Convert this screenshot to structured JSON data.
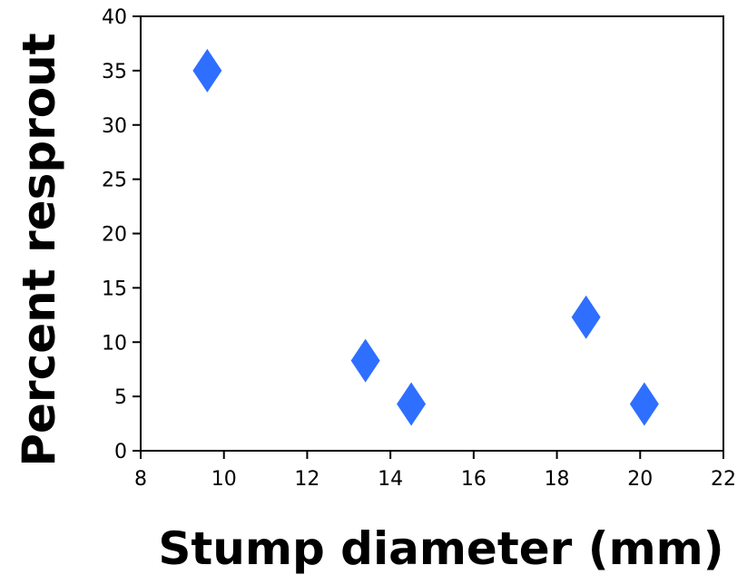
{
  "chart_data": {
    "type": "scatter",
    "xlabel": "Stump diameter (mm)",
    "ylabel": "Percent resprout",
    "xlim": [
      8,
      22
    ],
    "ylim": [
      0,
      40
    ],
    "xticks": [
      "8",
      "10",
      "12",
      "14",
      "16",
      "18",
      "20",
      "22"
    ],
    "yticks": [
      "0",
      "5",
      "10",
      "15",
      "20",
      "25",
      "30",
      "35",
      "40"
    ],
    "grid": false,
    "legend": "none",
    "marker": "diamond",
    "marker_color": "#2f6fff",
    "series": [
      {
        "x": [
          9.6,
          13.4,
          14.5,
          18.7,
          20.1
        ],
        "y": [
          35.0,
          8.3,
          4.3,
          12.3,
          4.3
        ]
      }
    ]
  }
}
